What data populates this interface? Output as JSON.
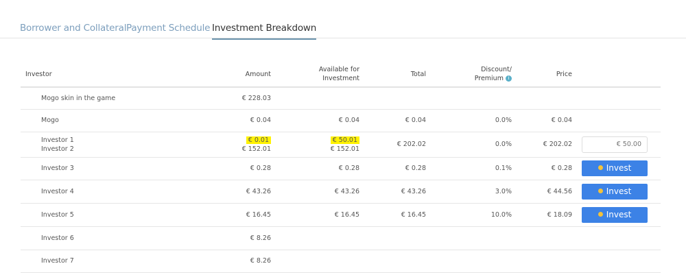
{
  "tabs": [
    {
      "label": "Borrower and Collateral"
    },
    {
      "label": "Payment Schedule"
    },
    {
      "label": "Investment Breakdown",
      "active": true
    }
  ],
  "table": {
    "headers": {
      "investor": "Investor",
      "amount": "Amount",
      "available_1": "Available for",
      "available_2": "Investment",
      "total": "Total",
      "discount_1": "Discount/",
      "discount_2": "Premium",
      "price": "Price"
    },
    "rows": [
      {
        "investor": [
          "Mogo skin in the game"
        ],
        "amount": [
          "€ 228.03"
        ],
        "available": [],
        "total": "",
        "discount": "",
        "price": "",
        "action": "none"
      },
      {
        "investor": [
          "Mogo"
        ],
        "amount": [
          "€ 0.04"
        ],
        "available": [
          "€ 0.04"
        ],
        "total": "€ 0.04",
        "discount": "0.0%",
        "price": "€ 0.04",
        "action": "none"
      },
      {
        "investor": [
          "Investor 1",
          "Investor 2"
        ],
        "amount": [
          "€ 0.01",
          "€ 152.01"
        ],
        "available": [
          "€ 50.01",
          "€ 152.01"
        ],
        "total": "€ 202.02",
        "discount": "0.0%",
        "price": "€ 202.02",
        "action": "input",
        "input_placeholder": "€ 50.00",
        "highlighted": true
      },
      {
        "investor": [
          "Investor 3"
        ],
        "amount": [
          "€ 0.28"
        ],
        "available": [
          "€ 0.28"
        ],
        "total": "€ 0.28",
        "discount": "0.1%",
        "price": "€ 0.28",
        "action": "button"
      },
      {
        "investor": [
          "Investor 4"
        ],
        "amount": [
          "€ 43.26"
        ],
        "available": [
          "€ 43.26"
        ],
        "total": "€ 43.26",
        "discount": "3.0%",
        "price": "€ 44.56",
        "action": "button"
      },
      {
        "investor": [
          "Investor 5"
        ],
        "amount": [
          "€ 16.45"
        ],
        "available": [
          "€ 16.45"
        ],
        "total": "€ 16.45",
        "discount": "10.0%",
        "price": "€ 18.09",
        "action": "button"
      },
      {
        "investor": [
          "Investor 6"
        ],
        "amount": [
          "€ 8.26"
        ],
        "available": [],
        "total": "",
        "discount": "",
        "price": "",
        "action": "none"
      },
      {
        "investor": [
          "Investor 7"
        ],
        "amount": [
          "€ 8.26"
        ],
        "available": [],
        "total": "",
        "discount": "",
        "price": "",
        "action": "none"
      }
    ],
    "invest_label": "Invest",
    "info_icon": "i"
  },
  "colors": {
    "accent": "#3c82e6",
    "highlight": "#fff200",
    "tab_link": "#7d9fbd"
  }
}
